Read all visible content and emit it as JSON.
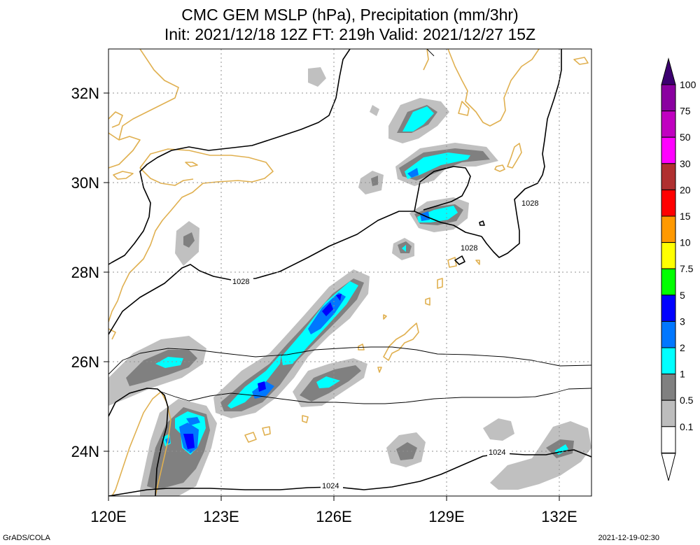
{
  "title": {
    "line1": "CMC GEM MSLP (hPa), Precipitation (mm/3hr)",
    "line2": "Init: 2021/12/18 12Z  FT: 219h  Valid: 2021/12/27 15Z"
  },
  "axes": {
    "x_ticks": [
      "120E",
      "123E",
      "126E",
      "129E",
      "132E"
    ],
    "y_ticks": [
      "32N",
      "30N",
      "28N",
      "26N",
      "24N"
    ]
  },
  "isobar_labels": [
    "1028",
    "1028",
    "1028",
    "1024",
    "1024"
  ],
  "colorbar": {
    "labels": [
      "100",
      "75",
      "50",
      "30",
      "20",
      "15",
      "10",
      "7.5",
      "5",
      "3",
      "2",
      "1",
      "0.5",
      "0.1"
    ],
    "colors": [
      "#8a00a0",
      "#c000c0",
      "#ff00ff",
      "#b03030",
      "#ff0000",
      "#ff9900",
      "#ffff00",
      "#00ff00",
      "#0000ff",
      "#0077ff",
      "#00ffff",
      "#808080",
      "#bdbdbd",
      "#ffffff"
    ],
    "top_cap_color": "#3c0070"
  },
  "footer": {
    "left": "GrADS/COLA",
    "right": "2021-12-19-02:30"
  }
}
